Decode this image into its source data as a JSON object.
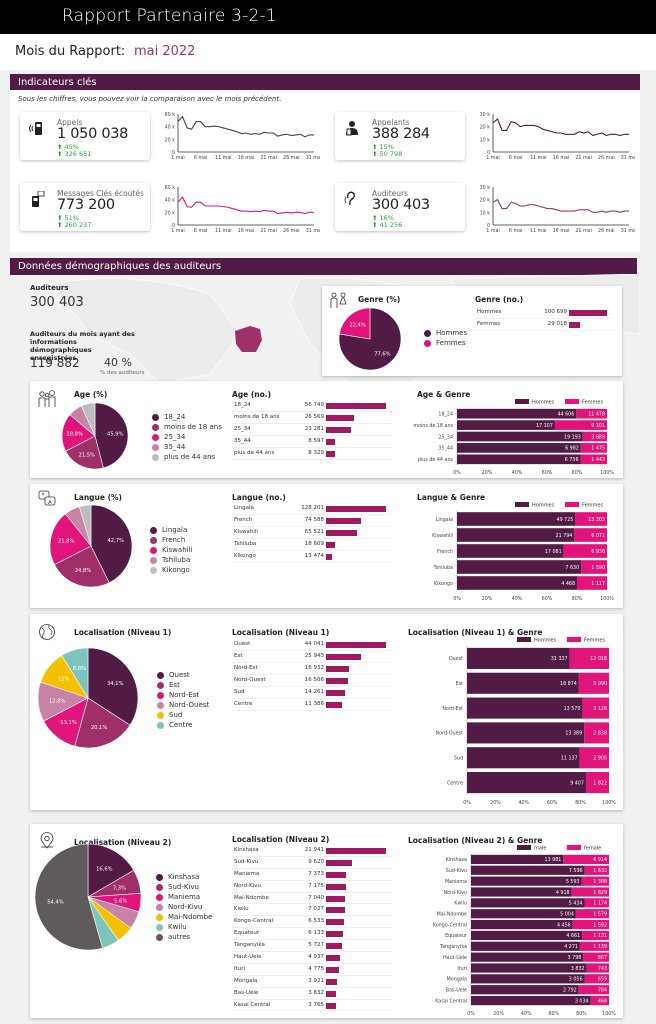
{
  "header": {
    "title": "Rapport Partenaire 3-2-1",
    "month_label": "Mois du Rapport:",
    "month_value": "mai 2022"
  },
  "colors": {
    "brand": "#521b45",
    "accent": "#e0147a",
    "mid": "#9e2f68",
    "pink": "#e0147a",
    "lightpink": "#c782a6",
    "grey": "#bdbdbd",
    "yellow": "#f5c000",
    "teal": "#7cc4bd",
    "dark_grey": "#5f5a5c",
    "green": "#2e9d3a"
  },
  "kpi_section": {
    "title": "Indicateurs clés",
    "note": "Sous les chiffres, vous pouvez voir la comparaison avec le mois précédent."
  },
  "kpis": [
    {
      "label": "Appels",
      "value": "1 050 038",
      "change_pct": "45%",
      "change_abs": "326 651",
      "icon": "phone-signal-icon",
      "color": "#444444",
      "ymax": 60,
      "yticks": [
        "60 k",
        "40 k",
        "20 k",
        "0"
      ],
      "series": [
        48,
        56,
        38,
        36,
        48,
        48,
        40,
        40,
        41,
        40,
        38,
        36,
        34,
        32,
        29,
        30,
        28,
        29,
        28,
        31,
        30,
        30,
        25,
        27,
        28,
        26,
        27,
        28,
        24,
        27,
        27
      ]
    },
    {
      "label": "Appelants",
      "value": "388 284",
      "change_pct": "15%",
      "change_abs": "50 798",
      "icon": "caller-icon",
      "color": "#521b45",
      "ymax": 30,
      "yticks": [
        "30 k",
        "20 k",
        "10 k",
        "0"
      ],
      "series": [
        23,
        26,
        17,
        17,
        24,
        23,
        20,
        21,
        21,
        21,
        20,
        18,
        17,
        16,
        15,
        15,
        14,
        14,
        14,
        16,
        15,
        16,
        13,
        14,
        15,
        13,
        14,
        14,
        13,
        14,
        14
      ]
    },
    {
      "label": "Messages Clés écoutés",
      "value": "773 200",
      "change_pct": "51%",
      "change_abs": "260 237",
      "icon": "phone-message-icon",
      "color": "#e0147a",
      "ymax": 60,
      "yticks": [
        "60 k",
        "40 k",
        "20 k",
        "0"
      ],
      "series": [
        36,
        44,
        29,
        28,
        36,
        36,
        30,
        30,
        30,
        30,
        29,
        28,
        26,
        24,
        22,
        22,
        21,
        22,
        21,
        23,
        22,
        22,
        18,
        19,
        20,
        19,
        20,
        20,
        18,
        20,
        20
      ]
    },
    {
      "label": "Auditeurs",
      "value": "300 403",
      "change_pct": "16%",
      "change_abs": "41 256",
      "icon": "ear-icon",
      "color": "#a0336e",
      "ymax": 30,
      "yticks": [
        "30 k",
        "20 k",
        "10 k",
        "0"
      ],
      "series": [
        18,
        20,
        13,
        13,
        18,
        17,
        15,
        15,
        16,
        16,
        15,
        14,
        13,
        13,
        12,
        11,
        11,
        11,
        11,
        12,
        12,
        12,
        10,
        10,
        11,
        10,
        11,
        11,
        10,
        11,
        11
      ]
    }
  ],
  "kpi_xticks": [
    "1 mai",
    "6 mai",
    "11 mai",
    "16 mai",
    "21 mai",
    "26 mai",
    "31 mai"
  ],
  "demo_section": {
    "title": "Données démographiques des auditeurs",
    "listeners_label": "Auditeurs",
    "listeners_value": "300 403",
    "demo_label": "Auditeurs du mois ayant des informations démographiques enregistrées",
    "demo_value": "119 882",
    "demo_pct": "40 %",
    "demo_pct_label": "% des auditeurs"
  },
  "chart_data": [
    {
      "id": "genre_pct",
      "type": "pie",
      "title": "Genre (%)",
      "labels": [
        "Hommes",
        "Femmes"
      ],
      "values": [
        77.6,
        22.4
      ],
      "display": [
        "77,6%",
        "22,4%"
      ],
      "colors": [
        "#521b45",
        "#e0147a"
      ]
    },
    {
      "id": "genre_no",
      "type": "bar",
      "title": "Genre (no.)",
      "categories": [
        "Hommes",
        "Femmes"
      ],
      "values": [
        100699,
        29018
      ],
      "display": [
        "100 699",
        "29 018"
      ]
    },
    {
      "id": "age_pct",
      "type": "pie",
      "title": "Age (%)",
      "labels": [
        "18_24",
        "moins de 18 ans",
        "25_34",
        "35_44",
        "plus de 44 ans"
      ],
      "values": [
        45.9,
        21.5,
        18.8,
        7.0,
        6.8
      ],
      "display": [
        "45,9%",
        "21,5%",
        "18,8%",
        "",
        ""
      ],
      "colors": [
        "#521b45",
        "#9e2f68",
        "#e0147a",
        "#c782a6",
        "#bdbdbd"
      ]
    },
    {
      "id": "age_no",
      "type": "bar",
      "title": "Age (no.)",
      "categories": [
        "18_24",
        "moins de 18 ans",
        "25_34",
        "35_44",
        "plus de 44 ans"
      ],
      "values": [
        56749,
        26569,
        23281,
        8597,
        8329
      ],
      "display": [
        "56 749",
        "26 569",
        "23 281",
        "8 597",
        "8 329"
      ]
    },
    {
      "id": "age_genre",
      "type": "bar",
      "stacked": "percent",
      "title": "Age & Genre",
      "categories": [
        "18_24",
        "moins de 18 ans",
        "25_34",
        "35_44",
        "plus de 44 ans"
      ],
      "series": [
        {
          "name": "Hommes",
          "values": [
            44606,
            17107,
            19193,
            6982,
            6736
          ],
          "display": [
            "44 606",
            "17 107",
            "19 193",
            "6 982",
            "6 736"
          ]
        },
        {
          "name": "Femmes",
          "values": [
            11478,
            9101,
            3689,
            1475,
            1443
          ],
          "display": [
            "11 478",
            "9 101",
            "3 689",
            "1 475",
            "1 443"
          ]
        }
      ],
      "xticks": [
        "0%",
        "20%",
        "40%",
        "60%",
        "80%",
        "100%"
      ]
    },
    {
      "id": "langue_pct",
      "type": "pie",
      "title": "Langue (%)",
      "labels": [
        "Lingala",
        "French",
        "Kiswahili",
        "Tshiluba",
        "Kikongo"
      ],
      "values": [
        42.7,
        24.8,
        21.8,
        6.1,
        4.6
      ],
      "display": [
        "42,7%",
        "24,8%",
        "21,8%",
        "",
        ""
      ],
      "colors": [
        "#521b45",
        "#9e2f68",
        "#e0147a",
        "#c782a6",
        "#bdbdbd"
      ]
    },
    {
      "id": "langue_no",
      "type": "bar",
      "title": "Langue (no.)",
      "categories": [
        "Lingala",
        "French",
        "Kiswahili",
        "Tshiluba",
        "Kikongo"
      ],
      "values": [
        128201,
        74588,
        65521,
        18609,
        13474
      ],
      "display": [
        "128 201",
        "74 588",
        "65 521",
        "18 609",
        "13 474"
      ]
    },
    {
      "id": "langue_genre",
      "type": "bar",
      "stacked": "percent",
      "title": "Langue & Genre",
      "categories": [
        "Lingala",
        "Kiswahili",
        "French",
        "Tshiluba",
        "Kikongo"
      ],
      "series": [
        {
          "name": "Hommes",
          "values": [
            49725,
            21794,
            17081,
            7630,
            4468
          ],
          "display": [
            "49 725",
            "21 794",
            "17 081",
            "7 630",
            "4 468"
          ]
        },
        {
          "name": "Femmes",
          "values": [
            13303,
            6071,
            6936,
            1590,
            1117
          ],
          "display": [
            "13 303",
            "6 071",
            "6 936",
            "1 590",
            "1 117"
          ]
        }
      ],
      "xticks": [
        "0%",
        "20%",
        "40%",
        "60%",
        "80%",
        "100%"
      ]
    },
    {
      "id": "loc1_pct",
      "type": "pie",
      "title": "Localisation (Niveau 1)",
      "labels": [
        "Ouest",
        "Est",
        "Nord-Est",
        "Nord-Ouest",
        "Sud",
        "Centre"
      ],
      "values": [
        34.1,
        20.1,
        13.1,
        12.8,
        11,
        8.8
      ],
      "display": [
        "34,1%",
        "20,1%",
        "13,1%",
        "12,8%",
        "11%",
        "8,8%"
      ],
      "colors": [
        "#521b45",
        "#9e2f68",
        "#e0147a",
        "#c782a6",
        "#f5c000",
        "#7cc4bd"
      ]
    },
    {
      "id": "loc1_no",
      "type": "bar",
      "title": "Localisation (Niveau 1)",
      "categories": [
        "Ouest",
        "Est",
        "Nord-Est",
        "Nord-Ouest",
        "Sud",
        "Centre"
      ],
      "values": [
        44041,
        25943,
        16932,
        16506,
        14261,
        11386
      ],
      "display": [
        "44 041",
        "25 943",
        "16 932",
        "16 506",
        "14 261",
        "11 386"
      ]
    },
    {
      "id": "loc1_genre",
      "type": "bar",
      "stacked": "percent",
      "title": "Localisation (Niveau 1) & Genre",
      "categories": [
        "Ouest",
        "Est",
        "Nord-Est",
        "Nord-Ouest",
        "Sud",
        "Centre"
      ],
      "series": [
        {
          "name": "Hommes",
          "values": [
            31337,
            18874,
            13570,
            13389,
            11137,
            9407
          ],
          "display": [
            "31 337",
            "18 874",
            "13 570",
            "13 389",
            "11 137",
            "9 407"
          ]
        },
        {
          "name": "Femmes",
          "values": [
            12018,
            5090,
            3126,
            2838,
            2905,
            1822
          ],
          "display": [
            "12 018",
            "5 090",
            "3 126",
            "2 838",
            "2 905",
            "1 822"
          ]
        }
      ],
      "xticks": [
        "0%",
        "20%",
        "40%",
        "60%",
        "80%",
        "100%"
      ]
    },
    {
      "id": "loc2_pct",
      "type": "pie",
      "title": "Localisation (Niveau 2)",
      "labels": [
        "Kinshasa",
        "Sud-Kivu",
        "Maniema",
        "Nord-Kivu",
        "Mai-Ndombe",
        "Kwilu",
        "autres"
      ],
      "values": [
        16.6,
        7.3,
        5.6,
        5.5,
        5.3,
        5.3,
        54.4
      ],
      "display": [
        "16,6%",
        "7,3%",
        "5,6%",
        "",
        "",
        "",
        "54,4%"
      ],
      "colors": [
        "#521b45",
        "#9e2f68",
        "#e0147a",
        "#c782a6",
        "#f5c000",
        "#7cc4bd",
        "#5f5a5c"
      ]
    },
    {
      "id": "loc2_no",
      "type": "bar",
      "title": "Localisation (Niveau 2)",
      "categories": [
        "Kinshasa",
        "Sud-Kivu",
        "Maniema",
        "Nord-Kivu",
        "Mai-Ndombe",
        "Kwilu",
        "Kongo-Central",
        "Equateur",
        "Tanganyika",
        "Haut-Uele",
        "Ituri",
        "Mongala",
        "Bas-Uele",
        "Kasai Central"
      ],
      "values": [
        21941,
        9620,
        7373,
        7175,
        7040,
        7027,
        6533,
        6133,
        5727,
        4937,
        4775,
        3921,
        3832,
        3765
      ],
      "display": [
        "21 941",
        "9 620",
        "7 373",
        "7 175",
        "7 040",
        "7 027",
        "6 533",
        "6 133",
        "5 727",
        "4 937",
        "4 775",
        "3 921",
        "3 832",
        "3 765"
      ]
    },
    {
      "id": "loc2_genre",
      "type": "bar",
      "stacked": "percent",
      "title": "Localisation (Niveau 2) & Genre",
      "categories": [
        "Kinshasa",
        "Sud-Kivu",
        "Maniema",
        "Nord-Kivu",
        "Kwilu",
        "Mai-Ndombe",
        "Kongo-Central",
        "Equateur",
        "Tanganyika",
        "Haut-Uele",
        "Ituri",
        "Mongala",
        "Bas-Uele",
        "Kasai Central"
      ],
      "series": [
        {
          "name": "male",
          "values": [
            13981,
            7596,
            5593,
            4918,
            5434,
            5004,
            4456,
            4661,
            4271,
            3798,
            3832,
            3056,
            2792,
            3034
          ],
          "display": [
            "13 981",
            "7 596",
            "5 593",
            "4 918",
            "5 434",
            "5 004",
            "4 456",
            "4 661",
            "4 271",
            "3 798",
            "3 832",
            "3 056",
            "2 792",
            "3 034"
          ]
        },
        {
          "name": "female",
          "values": [
            6914,
            1632,
            1388,
            1829,
            1174,
            1579,
            1592,
            1131,
            1139,
            867,
            743,
            659,
            784,
            468
          ],
          "display": [
            "6 914",
            "1 632",
            "1 388",
            "1 829",
            "1 174",
            "1 579",
            "1 592",
            "1 131",
            "1 139",
            "867",
            "743",
            "659",
            "784",
            "468"
          ]
        }
      ],
      "xticks": [
        "0%",
        "20%",
        "40%",
        "60%",
        "80%",
        "100%"
      ]
    }
  ]
}
